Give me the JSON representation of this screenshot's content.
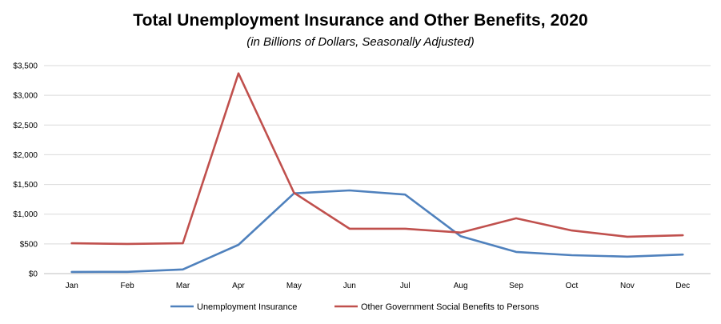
{
  "chart_data": {
    "type": "line",
    "title": "Total Unemployment Insurance and Other Benefits, 2020",
    "subtitle": "(in Billions of Dollars, Seasonally Adjusted)",
    "xlabel": "",
    "ylabel": "",
    "categories": [
      "Jan",
      "Feb",
      "Mar",
      "Apr",
      "May",
      "Jun",
      "Jul",
      "Aug",
      "Sep",
      "Oct",
      "Nov",
      "Dec"
    ],
    "ylim": [
      0,
      3500
    ],
    "yticks": [
      0,
      500,
      1000,
      1500,
      2000,
      2500,
      3000,
      3500
    ],
    "ytick_labels": [
      "$0",
      "$500",
      "$1,000",
      "$1,500",
      "$2,000",
      "$2,500",
      "$3,000",
      "$3,500"
    ],
    "grid": true,
    "legend_position": "bottom",
    "series": [
      {
        "name": "Unemployment Insurance",
        "color": "#4f81bd",
        "values": [
          28,
          30,
          70,
          485,
          1350,
          1400,
          1330,
          630,
          365,
          310,
          285,
          320
        ]
      },
      {
        "name": "Other Government Social Benefits to Persons",
        "color": "#c0504d",
        "values": [
          510,
          500,
          510,
          3370,
          1360,
          755,
          755,
          690,
          930,
          725,
          620,
          645
        ]
      }
    ]
  }
}
